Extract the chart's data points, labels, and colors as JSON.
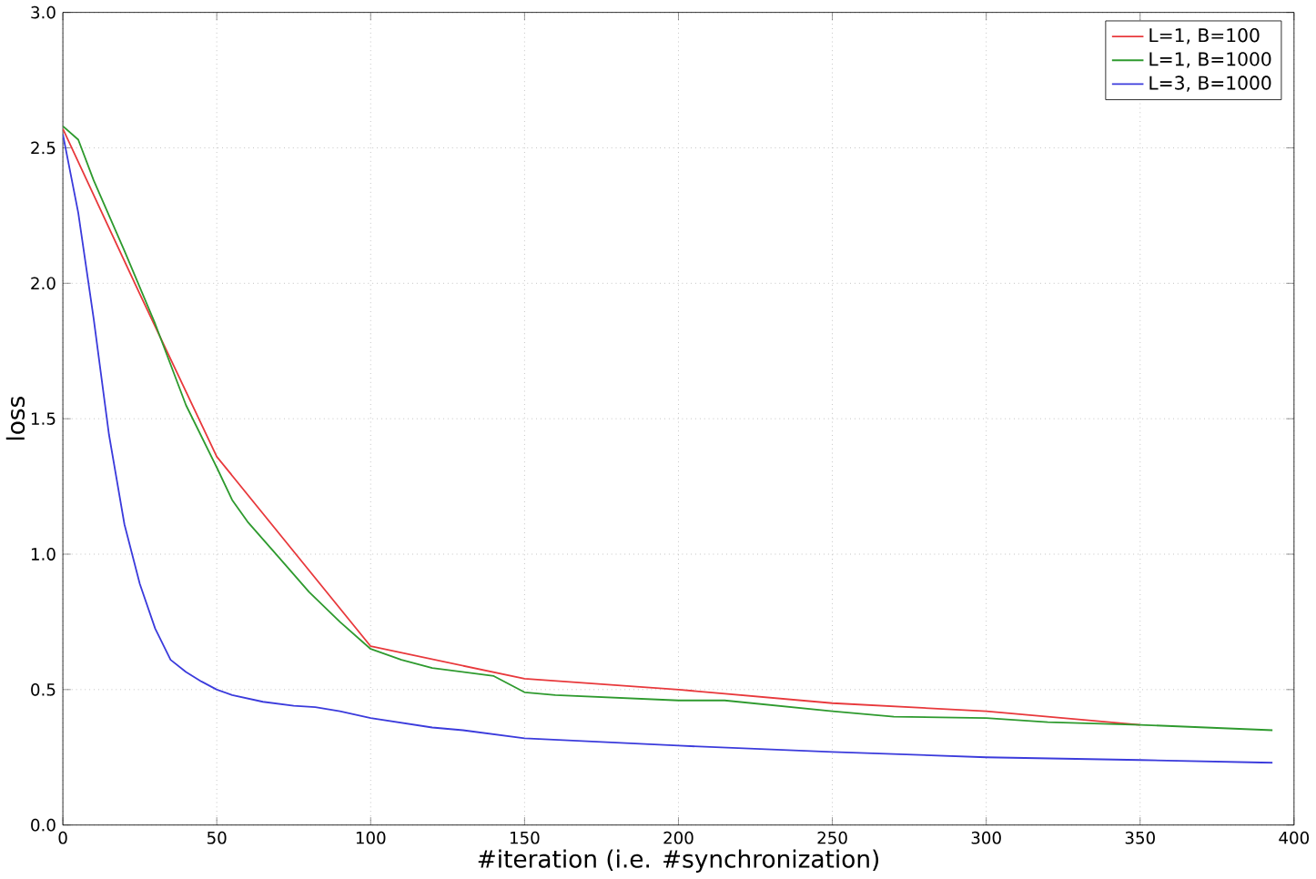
{
  "chart_data": {
    "type": "line",
    "xlabel": "#iteration (i.e. #synchronization)",
    "ylabel": "loss",
    "xlim": [
      0,
      400
    ],
    "ylim": [
      0,
      3.0
    ],
    "xticks": [
      0,
      50,
      100,
      150,
      200,
      250,
      300,
      350,
      {
        "value": 400,
        "label": "400"
      }
    ],
    "yticks": [
      {
        "value": 0,
        "label": "0.0"
      },
      {
        "value": 0.5,
        "label": "0.5"
      },
      {
        "value": 1,
        "label": "1.0"
      },
      {
        "value": 1.5,
        "label": "1.5"
      },
      {
        "value": 2,
        "label": "2.0"
      },
      {
        "value": 2.5,
        "label": "2.5"
      },
      {
        "value": 3,
        "label": "3.0"
      }
    ],
    "grid": true,
    "legend": "top right",
    "line_style": "solid",
    "marker": "none",
    "series": [
      {
        "name": "L=1, B=100",
        "color": "#e8393c",
        "x": [
          0,
          25,
          50,
          100,
          150,
          200,
          250,
          300,
          350
        ],
        "values": [
          2.57,
          1.96,
          1.36,
          0.66,
          0.54,
          0.5,
          0.45,
          0.42,
          0.37
        ]
      },
      {
        "name": "L=1, B=1000",
        "color": "#2e9a2e",
        "x": [
          0,
          5,
          10,
          20,
          30,
          40,
          50,
          55,
          60,
          70,
          80,
          90,
          100,
          110,
          120,
          140,
          150,
          160,
          200,
          215,
          250,
          270,
          300,
          320,
          350,
          393
        ],
        "values": [
          2.58,
          2.53,
          2.38,
          2.12,
          1.85,
          1.55,
          1.32,
          1.2,
          1.12,
          0.99,
          0.86,
          0.75,
          0.65,
          0.61,
          0.58,
          0.55,
          0.49,
          0.48,
          0.46,
          0.46,
          0.42,
          0.4,
          0.395,
          0.38,
          0.37,
          0.35
        ]
      },
      {
        "name": "L=3, B=1000",
        "color": "#3b3bdc",
        "x": [
          0,
          5,
          10,
          15,
          20,
          25,
          30,
          35,
          40,
          45,
          50,
          55,
          65,
          75,
          82,
          90,
          100,
          120,
          130,
          150,
          200,
          250,
          300,
          350,
          393
        ],
        "values": [
          2.55,
          2.26,
          1.87,
          1.44,
          1.11,
          0.89,
          0.725,
          0.61,
          0.565,
          0.53,
          0.5,
          0.48,
          0.455,
          0.44,
          0.435,
          0.42,
          0.395,
          0.36,
          0.35,
          0.32,
          0.293,
          0.27,
          0.25,
          0.24,
          0.23
        ]
      }
    ]
  }
}
